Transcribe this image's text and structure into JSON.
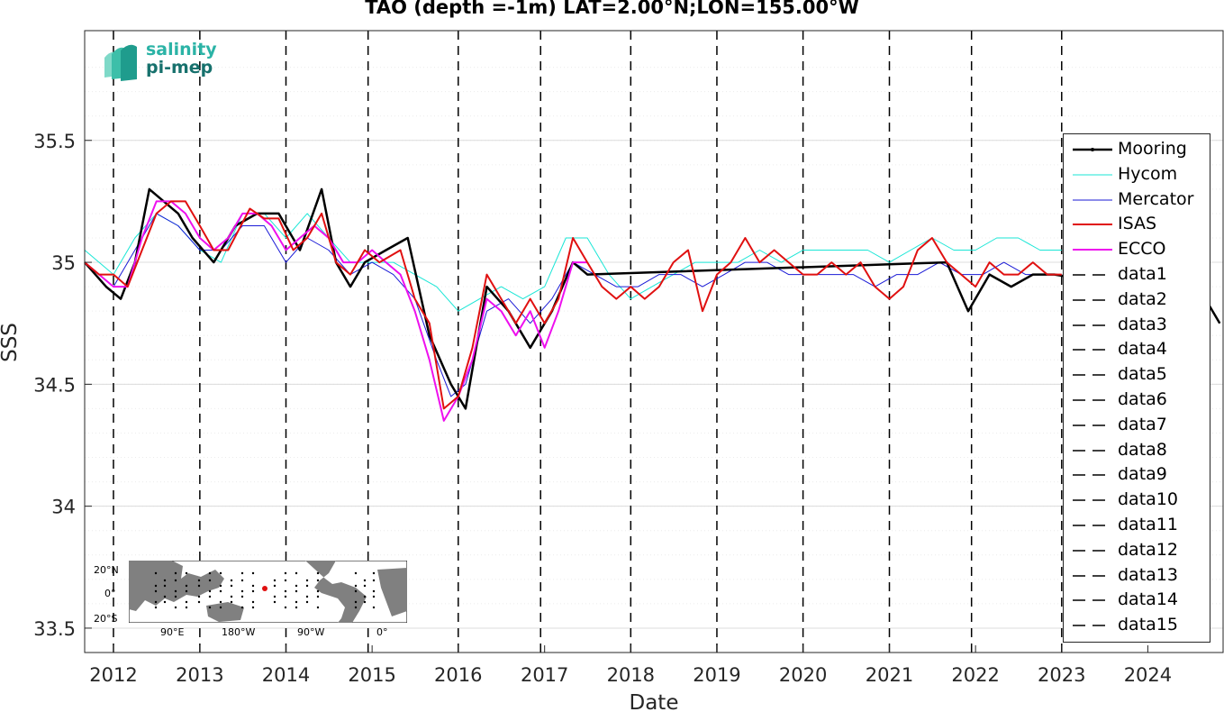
{
  "logo": {
    "line1": "salinity",
    "line2": "pi-mep"
  },
  "inset": {
    "ylabels": [
      "20°N",
      "0°",
      "20°S"
    ],
    "xlabels": [
      "90°E",
      "180°W",
      "90°W",
      "0°"
    ]
  },
  "colors": {
    "mooring": "#000000",
    "hycom": "#19e6d6",
    "mercator": "#1a1ad6",
    "isas": "#e01010",
    "ecco": "#ee10ee",
    "grid": "#dcdcdc",
    "axis": "#262626"
  },
  "chart_data": {
    "type": "line",
    "title": "TAO (depth =-1m) LAT=2.00°N;LON=155.00°W",
    "xlabel": "Date",
    "ylabel": "SSS",
    "xlim": [
      "2011-09-01",
      "2024-11-15"
    ],
    "ylim": [
      33.4,
      35.95
    ],
    "xticks": [
      "2012",
      "2013",
      "2014",
      "2015",
      "2016",
      "2017",
      "2018",
      "2019",
      "2020",
      "2021",
      "2022",
      "2023",
      "2024"
    ],
    "yticks": [
      33.5,
      34,
      34.5,
      35,
      35.5
    ],
    "ytick_labels": [
      "33.5",
      "34",
      "34.5",
      "35",
      "35.5"
    ],
    "grid": true,
    "legend_position": "right",
    "vertical_lines": {
      "style": "dashed",
      "dates": [
        "2012-01-01",
        "2013-01-01",
        "2014-01-01",
        "2014-12-15",
        "2016-01-01",
        "2016-12-15",
        "2018-01-01",
        "2019-01-01",
        "2020-01-01",
        "2021-01-01",
        "2021-12-15",
        "2023-01-01"
      ]
    },
    "series": [
      {
        "name": "Mooring",
        "points": [
          [
            "2011-09-01",
            35.0
          ],
          [
            "2011-12-01",
            34.9
          ],
          [
            "2012-02-01",
            34.85
          ],
          [
            "2012-04-01",
            35.0
          ],
          [
            "2012-06-01",
            35.3
          ],
          [
            "2012-08-01",
            35.25
          ],
          [
            "2012-10-01",
            35.2
          ],
          [
            "2012-12-01",
            35.1
          ],
          [
            "2013-03-01",
            35.0
          ],
          [
            "2013-06-01",
            35.15
          ],
          [
            "2013-09-01",
            35.2
          ],
          [
            "2013-12-01",
            35.2
          ],
          [
            "2014-03-01",
            35.05
          ],
          [
            "2014-06-01",
            35.3
          ],
          [
            "2014-08-01",
            35.0
          ],
          [
            "2014-10-01",
            34.9
          ],
          [
            "2014-12-01",
            35.0
          ],
          [
            "2015-03-01",
            35.05
          ],
          [
            "2015-06-01",
            35.1
          ],
          [
            "2015-09-01",
            34.7
          ],
          [
            "2015-12-01",
            34.5
          ],
          [
            "2016-02-01",
            34.4
          ],
          [
            "2016-05-01",
            34.9
          ],
          [
            "2016-08-01",
            34.8
          ],
          [
            "2016-11-01",
            34.65
          ],
          [
            "2017-02-01",
            34.8
          ],
          [
            "2017-05-01",
            35.0
          ],
          [
            "2017-07-01",
            34.95
          ],
          [
            "2021-09-01",
            35.0
          ],
          [
            "2021-12-01",
            34.8
          ],
          [
            "2022-03-01",
            34.95
          ],
          [
            "2022-06-01",
            34.9
          ],
          [
            "2022-09-01",
            34.95
          ],
          [
            "2022-12-01",
            34.95
          ],
          [
            "2024-09-01",
            34.85
          ],
          [
            "2024-11-01",
            34.75
          ]
        ]
      },
      {
        "name": "Hycom",
        "points": [
          [
            "2011-09-01",
            35.05
          ],
          [
            "2012-01-01",
            34.95
          ],
          [
            "2012-04-01",
            35.1
          ],
          [
            "2012-07-01",
            35.2
          ],
          [
            "2012-10-01",
            35.15
          ],
          [
            "2013-01-01",
            35.05
          ],
          [
            "2013-04-01",
            35.0
          ],
          [
            "2013-07-01",
            35.2
          ],
          [
            "2013-10-01",
            35.2
          ],
          [
            "2014-01-01",
            35.1
          ],
          [
            "2014-04-01",
            35.2
          ],
          [
            "2014-07-01",
            35.1
          ],
          [
            "2014-10-01",
            35.0
          ],
          [
            "2015-01-01",
            35.0
          ],
          [
            "2015-04-01",
            35.0
          ],
          [
            "2015-07-01",
            34.95
          ],
          [
            "2015-10-01",
            34.9
          ],
          [
            "2016-01-01",
            34.8
          ],
          [
            "2016-04-01",
            34.85
          ],
          [
            "2016-07-01",
            34.9
          ],
          [
            "2016-10-01",
            34.85
          ],
          [
            "2017-01-01",
            34.9
          ],
          [
            "2017-04-01",
            35.1
          ],
          [
            "2017-07-01",
            35.1
          ],
          [
            "2017-10-01",
            34.95
          ],
          [
            "2018-01-01",
            34.85
          ],
          [
            "2018-04-01",
            34.9
          ],
          [
            "2018-07-01",
            34.95
          ],
          [
            "2018-10-01",
            35.0
          ],
          [
            "2019-01-01",
            35.0
          ],
          [
            "2019-04-01",
            35.0
          ],
          [
            "2019-07-01",
            35.05
          ],
          [
            "2019-10-01",
            35.0
          ],
          [
            "2020-01-01",
            35.05
          ],
          [
            "2020-04-01",
            35.05
          ],
          [
            "2020-07-01",
            35.05
          ],
          [
            "2020-10-01",
            35.05
          ],
          [
            "2021-01-01",
            35.0
          ],
          [
            "2021-04-01",
            35.05
          ],
          [
            "2021-07-01",
            35.1
          ],
          [
            "2021-10-01",
            35.05
          ],
          [
            "2022-01-01",
            35.05
          ],
          [
            "2022-04-01",
            35.1
          ],
          [
            "2022-07-01",
            35.1
          ],
          [
            "2022-10-01",
            35.05
          ],
          [
            "2023-01-01",
            35.05
          ]
        ]
      },
      {
        "name": "Mercator",
        "points": [
          [
            "2011-09-01",
            35.0
          ],
          [
            "2012-01-01",
            34.9
          ],
          [
            "2012-04-01",
            35.05
          ],
          [
            "2012-07-01",
            35.2
          ],
          [
            "2012-10-01",
            35.15
          ],
          [
            "2013-01-01",
            35.05
          ],
          [
            "2013-04-01",
            35.05
          ],
          [
            "2013-07-01",
            35.15
          ],
          [
            "2013-10-01",
            35.15
          ],
          [
            "2014-01-01",
            35.0
          ],
          [
            "2014-04-01",
            35.1
          ],
          [
            "2014-07-01",
            35.05
          ],
          [
            "2014-10-01",
            34.95
          ],
          [
            "2015-01-01",
            35.0
          ],
          [
            "2015-04-01",
            34.95
          ],
          [
            "2015-07-01",
            34.85
          ],
          [
            "2015-10-01",
            34.6
          ],
          [
            "2015-12-01",
            34.45
          ],
          [
            "2016-02-01",
            34.5
          ],
          [
            "2016-05-01",
            34.8
          ],
          [
            "2016-08-01",
            34.85
          ],
          [
            "2016-11-01",
            34.75
          ],
          [
            "2017-02-01",
            34.85
          ],
          [
            "2017-05-01",
            35.0
          ],
          [
            "2017-08-01",
            34.95
          ],
          [
            "2017-11-01",
            34.9
          ],
          [
            "2018-02-01",
            34.9
          ],
          [
            "2018-05-01",
            34.95
          ],
          [
            "2018-08-01",
            34.95
          ],
          [
            "2018-11-01",
            34.9
          ],
          [
            "2019-02-01",
            34.95
          ],
          [
            "2019-05-01",
            35.0
          ],
          [
            "2019-08-01",
            35.0
          ],
          [
            "2019-11-01",
            34.95
          ],
          [
            "2020-02-01",
            34.95
          ],
          [
            "2020-05-01",
            34.95
          ],
          [
            "2020-08-01",
            34.95
          ],
          [
            "2020-11-01",
            34.9
          ],
          [
            "2021-02-01",
            34.95
          ],
          [
            "2021-05-01",
            34.95
          ],
          [
            "2021-08-01",
            35.0
          ],
          [
            "2021-11-01",
            34.95
          ],
          [
            "2022-02-01",
            34.95
          ],
          [
            "2022-05-01",
            35.0
          ],
          [
            "2022-08-01",
            34.95
          ],
          [
            "2022-11-01",
            34.95
          ],
          [
            "2023-01-01",
            34.95
          ]
        ]
      },
      {
        "name": "ISAS",
        "points": [
          [
            "2011-09-01",
            35.0
          ],
          [
            "2011-11-01",
            34.95
          ],
          [
            "2012-01-01",
            34.95
          ],
          [
            "2012-03-01",
            34.9
          ],
          [
            "2012-05-01",
            35.05
          ],
          [
            "2012-07-01",
            35.2
          ],
          [
            "2012-09-01",
            35.25
          ],
          [
            "2012-11-01",
            35.25
          ],
          [
            "2013-01-01",
            35.15
          ],
          [
            "2013-03-01",
            35.05
          ],
          [
            "2013-05-01",
            35.05
          ],
          [
            "2013-08-01",
            35.22
          ],
          [
            "2013-10-01",
            35.18
          ],
          [
            "2013-12-01",
            35.18
          ],
          [
            "2014-02-01",
            35.05
          ],
          [
            "2014-04-01",
            35.1
          ],
          [
            "2014-06-01",
            35.2
          ],
          [
            "2014-08-01",
            35.0
          ],
          [
            "2014-10-01",
            34.95
          ],
          [
            "2014-12-01",
            35.05
          ],
          [
            "2015-02-01",
            35.0
          ],
          [
            "2015-05-01",
            35.05
          ],
          [
            "2015-07-01",
            34.85
          ],
          [
            "2015-09-01",
            34.75
          ],
          [
            "2015-11-01",
            34.4
          ],
          [
            "2016-01-01",
            34.45
          ],
          [
            "2016-03-01",
            34.65
          ],
          [
            "2016-05-01",
            34.95
          ],
          [
            "2016-07-01",
            34.85
          ],
          [
            "2016-09-01",
            34.75
          ],
          [
            "2016-11-01",
            34.85
          ],
          [
            "2017-01-01",
            34.75
          ],
          [
            "2017-03-01",
            34.85
          ],
          [
            "2017-05-01",
            35.1
          ],
          [
            "2017-07-01",
            35.0
          ],
          [
            "2017-09-01",
            34.9
          ],
          [
            "2017-11-01",
            34.85
          ],
          [
            "2018-01-01",
            34.9
          ],
          [
            "2018-03-01",
            34.85
          ],
          [
            "2018-05-01",
            34.9
          ],
          [
            "2018-07-01",
            35.0
          ],
          [
            "2018-09-01",
            35.05
          ],
          [
            "2018-11-01",
            34.8
          ],
          [
            "2019-01-01",
            34.95
          ],
          [
            "2019-03-01",
            35.0
          ],
          [
            "2019-05-01",
            35.1
          ],
          [
            "2019-07-01",
            35.0
          ],
          [
            "2019-09-01",
            35.05
          ],
          [
            "2019-11-01",
            35.0
          ],
          [
            "2020-01-01",
            34.95
          ],
          [
            "2020-03-01",
            34.95
          ],
          [
            "2020-05-01",
            35.0
          ],
          [
            "2020-07-01",
            34.95
          ],
          [
            "2020-09-01",
            35.0
          ],
          [
            "2020-11-01",
            34.9
          ],
          [
            "2021-01-01",
            34.85
          ],
          [
            "2021-03-01",
            34.9
          ],
          [
            "2021-05-01",
            35.05
          ],
          [
            "2021-07-01",
            35.1
          ],
          [
            "2021-09-01",
            35.0
          ],
          [
            "2021-11-01",
            34.95
          ],
          [
            "2022-01-01",
            34.9
          ],
          [
            "2022-03-01",
            35.0
          ],
          [
            "2022-05-01",
            34.95
          ],
          [
            "2022-07-01",
            34.95
          ],
          [
            "2022-09-01",
            35.0
          ],
          [
            "2022-11-01",
            34.95
          ],
          [
            "2023-01-01",
            34.95
          ]
        ]
      },
      {
        "name": "ECCO",
        "points": [
          [
            "2011-09-01",
            35.0
          ],
          [
            "2011-11-01",
            34.95
          ],
          [
            "2012-01-01",
            34.9
          ],
          [
            "2012-03-01",
            34.9
          ],
          [
            "2012-05-01",
            35.1
          ],
          [
            "2012-07-01",
            35.25
          ],
          [
            "2012-09-01",
            35.25
          ],
          [
            "2012-11-01",
            35.2
          ],
          [
            "2013-01-01",
            35.1
          ],
          [
            "2013-03-01",
            35.05
          ],
          [
            "2013-05-01",
            35.1
          ],
          [
            "2013-07-01",
            35.2
          ],
          [
            "2013-09-01",
            35.2
          ],
          [
            "2013-11-01",
            35.15
          ],
          [
            "2014-01-01",
            35.05
          ],
          [
            "2014-03-01",
            35.1
          ],
          [
            "2014-05-01",
            35.15
          ],
          [
            "2014-07-01",
            35.1
          ],
          [
            "2014-09-01",
            35.0
          ],
          [
            "2014-11-01",
            35.0
          ],
          [
            "2015-01-01",
            35.05
          ],
          [
            "2015-03-01",
            35.0
          ],
          [
            "2015-05-01",
            34.95
          ],
          [
            "2015-07-01",
            34.8
          ],
          [
            "2015-09-01",
            34.6
          ],
          [
            "2015-11-01",
            34.35
          ],
          [
            "2016-01-01",
            34.45
          ],
          [
            "2016-03-01",
            34.6
          ],
          [
            "2016-05-01",
            34.85
          ],
          [
            "2016-07-01",
            34.8
          ],
          [
            "2016-09-01",
            34.7
          ],
          [
            "2016-11-01",
            34.8
          ],
          [
            "2017-01-01",
            34.65
          ],
          [
            "2017-03-01",
            34.8
          ],
          [
            "2017-05-01",
            35.0
          ],
          [
            "2017-07-01",
            35.0
          ]
        ]
      }
    ]
  }
}
